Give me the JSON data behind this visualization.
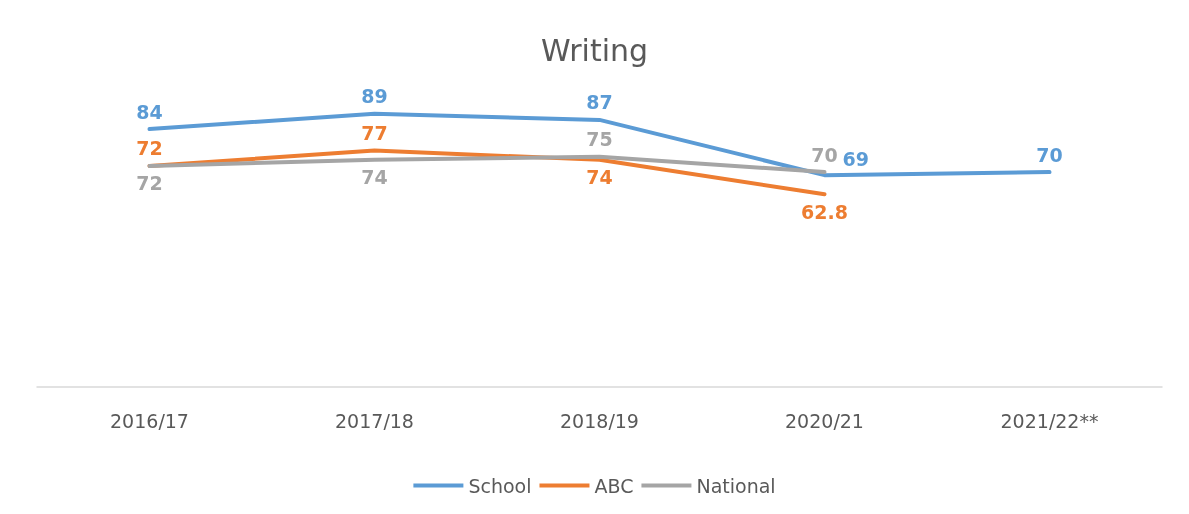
{
  "chart_data": {
    "type": "line",
    "title": "Writing",
    "categories": [
      "2016/17",
      "2017/18",
      "2018/19",
      "2020/21",
      "2021/22**"
    ],
    "series": [
      {
        "name": "School",
        "color": "#5b9bd5",
        "values": [
          84,
          89,
          87,
          69,
          70
        ]
      },
      {
        "name": "ABC",
        "color": "#ed7d31",
        "values": [
          72,
          77,
          74,
          62.8,
          null
        ]
      },
      {
        "name": "National",
        "color": "#a5a5a5",
        "values": [
          72,
          74,
          75,
          70,
          null
        ]
      }
    ],
    "tick_labels": "x",
    "data_labels": true,
    "legend": "bottom",
    "grid": false,
    "marker": "none",
    "line_style": "solid"
  }
}
